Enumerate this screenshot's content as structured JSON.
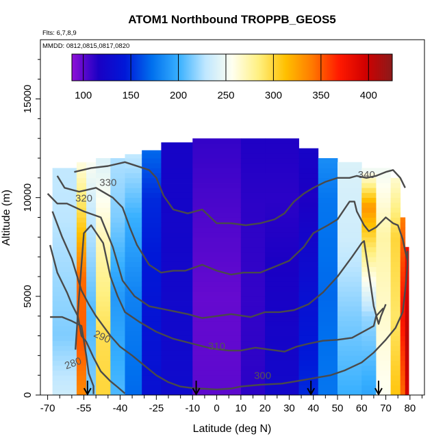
{
  "chart_data": {
    "type": "heatmap",
    "title": "ATOM1 Northbound TROPPB_GEOS5",
    "annotations": {
      "flights": "Flts: 6,7,8,9",
      "dates": "MMDD: 0812,0815,0817,0820"
    },
    "xlabel": "Latitude (deg N)",
    "ylabel": "Altitude (m)",
    "x_ticks": [
      -70,
      -55,
      -40,
      -25,
      -10,
      0,
      10,
      20,
      30,
      40,
      50,
      60,
      70,
      80
    ],
    "y_ticks": [
      0,
      5000,
      10000,
      15000
    ],
    "xlim": [
      -73,
      86
    ],
    "ylim": [
      0,
      18000
    ],
    "colorbar": {
      "ticks": [
        100,
        150,
        200,
        250,
        300,
        350,
        400
      ],
      "range": [
        88,
        425
      ],
      "stops": [
        "#8f0fd6",
        "#1a00c4",
        "#0018d8",
        "#0070ee",
        "#38b0ff",
        "#bfe7ff",
        "#fffff0",
        "#fff080",
        "#ffc000",
        "#ff7a00",
        "#ff1a00",
        "#d00000",
        "#8b1a1a"
      ]
    },
    "field": [
      {
        "lat_range": [
          -68,
          -58
        ],
        "alt_top": 11500,
        "profile": [
          [
            0,
            235
          ],
          [
            3000,
            215
          ],
          [
            9000,
            228
          ],
          [
            11500,
            230
          ]
        ]
      },
      {
        "lat_range": [
          -58,
          -54
        ],
        "alt_top": 11800,
        "profile": [
          [
            0,
            335
          ],
          [
            2500,
            350
          ],
          [
            6000,
            345
          ],
          [
            9000,
            300
          ],
          [
            11800,
            260
          ]
        ]
      },
      {
        "lat_range": [
          -54,
          -50
        ],
        "alt_top": 11800,
        "profile": [
          [
            0,
            215
          ],
          [
            4000,
            205
          ],
          [
            9000,
            230
          ],
          [
            11800,
            255
          ]
        ]
      },
      {
        "lat_range": [
          -50,
          -44
        ],
        "alt_top": 12000,
        "profile": [
          [
            0,
            300
          ],
          [
            3000,
            295
          ],
          [
            8000,
            270
          ],
          [
            12000,
            240
          ]
        ]
      },
      {
        "lat_range": [
          -44,
          -38
        ],
        "alt_top": 12000,
        "profile": [
          [
            0,
            205
          ],
          [
            5000,
            190
          ],
          [
            9000,
            215
          ],
          [
            12000,
            225
          ]
        ]
      },
      {
        "lat_range": [
          -38,
          -31
        ],
        "alt_top": 12200,
        "profile": [
          [
            0,
            170
          ],
          [
            5000,
            180
          ],
          [
            9000,
            200
          ],
          [
            12200,
            230
          ]
        ]
      },
      {
        "lat_range": [
          -31,
          -23
        ],
        "alt_top": 12400,
        "profile": [
          [
            0,
            135
          ],
          [
            5000,
            140
          ],
          [
            10000,
            150
          ],
          [
            12400,
            170
          ]
        ]
      },
      {
        "lat_range": [
          -23,
          -10
        ],
        "alt_top": 12800,
        "profile": [
          [
            0,
            128
          ],
          [
            5000,
            125
          ],
          [
            10000,
            122
          ],
          [
            12800,
            120
          ]
        ]
      },
      {
        "lat_range": [
          -10,
          10
        ],
        "alt_top": 13000,
        "profile": [
          [
            0,
            100
          ],
          [
            5000,
            98
          ],
          [
            10000,
            105
          ],
          [
            13000,
            110
          ]
        ]
      },
      {
        "lat_range": [
          10,
          20
        ],
        "alt_top": 13000,
        "profile": [
          [
            0,
            112
          ],
          [
            5000,
            110
          ],
          [
            10000,
            112
          ],
          [
            13000,
            115
          ]
        ]
      },
      {
        "lat_range": [
          20,
          34
        ],
        "alt_top": 13000,
        "profile": [
          [
            0,
            125
          ],
          [
            5000,
            118
          ],
          [
            10000,
            112
          ],
          [
            13000,
            115
          ]
        ]
      },
      {
        "lat_range": [
          34,
          42
        ],
        "alt_top": 12500,
        "profile": [
          [
            0,
            150
          ],
          [
            5000,
            135
          ],
          [
            10000,
            115
          ],
          [
            12500,
            120
          ]
        ]
      },
      {
        "lat_range": [
          42,
          50
        ],
        "alt_top": 12000,
        "profile": [
          [
            0,
            175
          ],
          [
            5000,
            170
          ],
          [
            10000,
            175
          ],
          [
            12000,
            185
          ]
        ]
      },
      {
        "lat_range": [
          50,
          60
        ],
        "alt_top": 11800,
        "profile": [
          [
            0,
            200
          ],
          [
            4000,
            215
          ],
          [
            8000,
            235
          ],
          [
            11800,
            240
          ]
        ]
      },
      {
        "lat_range": [
          60,
          66
        ],
        "alt_top": 11500,
        "profile": [
          [
            0,
            195
          ],
          [
            4000,
            220
          ],
          [
            9500,
            330
          ],
          [
            11500,
            245
          ]
        ]
      },
      {
        "lat_range": [
          66,
          72
        ],
        "alt_top": 11500,
        "profile": [
          [
            0,
            255
          ],
          [
            4000,
            265
          ],
          [
            8000,
            275
          ],
          [
            11500,
            250
          ]
        ]
      },
      {
        "lat_range": [
          72,
          76
        ],
        "alt_top": 11000,
        "profile": [
          [
            0,
            310
          ],
          [
            4000,
            290
          ],
          [
            8000,
            300
          ],
          [
            11000,
            265
          ]
        ]
      },
      {
        "lat_range": [
          76,
          78
        ],
        "alt_top": 9000,
        "profile": [
          [
            0,
            345
          ],
          [
            4000,
            375
          ],
          [
            9000,
            340
          ]
        ]
      },
      {
        "lat_range": [
          78,
          79.5
        ],
        "alt_top": 7500,
        "profile": [
          [
            0,
            395
          ],
          [
            3000,
            405
          ],
          [
            7500,
            380
          ]
        ]
      }
    ],
    "contours": [
      {
        "level": "280",
        "labeled": true,
        "points": [
          [
            -69,
            3950
          ],
          [
            -64,
            3950
          ],
          [
            -60,
            3750
          ],
          [
            -56,
            3500
          ],
          [
            -54,
            2000
          ],
          [
            -53,
            1100
          ],
          [
            -51,
            450
          ],
          [
            -51,
            50
          ]
        ]
      },
      {
        "level": "290",
        "labeled": true,
        "points": [
          [
            -69,
            7600
          ],
          [
            -66,
            6200
          ],
          [
            -62,
            5200
          ],
          [
            -60,
            4600
          ],
          [
            -57.5,
            4000
          ],
          [
            -56,
            3000
          ],
          [
            -54,
            2700
          ],
          [
            -51,
            1900
          ],
          [
            -48,
            1200
          ],
          [
            -44,
            700
          ],
          [
            -41,
            400
          ],
          [
            -38,
            80
          ]
        ]
      },
      {
        "level": "300",
        "labeled": true,
        "points": [
          [
            -68,
            9300
          ],
          [
            -64,
            8000
          ],
          [
            -60,
            6900
          ],
          [
            -56,
            5300
          ],
          [
            -53,
            4600
          ],
          [
            -50,
            4000
          ],
          [
            -47,
            3500
          ],
          [
            -44,
            3000
          ],
          [
            -40,
            2450
          ],
          [
            -35,
            2000
          ],
          [
            -30,
            1500
          ],
          [
            -25,
            1000
          ],
          [
            -20,
            650
          ],
          [
            -15,
            430
          ],
          [
            -10,
            350
          ],
          [
            -4,
            310
          ],
          [
            0,
            280
          ],
          [
            6,
            330
          ],
          [
            10,
            430
          ],
          [
            18,
            520
          ],
          [
            27,
            580
          ],
          [
            33,
            700
          ],
          [
            40,
            850
          ],
          [
            47,
            1000
          ],
          [
            53,
            1250
          ],
          [
            60,
            1650
          ],
          [
            65,
            2150
          ],
          [
            70,
            2800
          ],
          [
            74,
            3400
          ],
          [
            77,
            4200
          ],
          [
            78,
            5300
          ],
          [
            79,
            6600
          ],
          [
            79,
            7300
          ]
        ]
      },
      {
        "level": "310",
        "labeled": true,
        "points": [
          [
            -58.5,
            2300
          ],
          [
            -57,
            5000
          ],
          [
            -55,
            8200
          ],
          [
            -52,
            8600
          ],
          [
            -47,
            7700
          ],
          [
            -44,
            6000
          ],
          [
            -41,
            5000
          ],
          [
            -38,
            4200
          ],
          [
            -32,
            3700
          ],
          [
            -25,
            3200
          ],
          [
            -18,
            2850
          ],
          [
            -10,
            2600
          ],
          [
            -2,
            2350
          ],
          [
            5,
            2250
          ],
          [
            10,
            2250
          ],
          [
            16,
            2400
          ],
          [
            22,
            2300
          ],
          [
            28,
            2200
          ],
          [
            33,
            2450
          ],
          [
            38,
            2600
          ],
          [
            44,
            2750
          ],
          [
            50,
            2800
          ],
          [
            56,
            2900
          ],
          [
            62,
            3300
          ],
          [
            65,
            3500
          ],
          [
            66,
            4000
          ],
          [
            69,
            4400
          ]
        ]
      },
      {
        "level": "320",
        "labeled": true,
        "points": [
          [
            -70,
            10200
          ],
          [
            -66,
            9700
          ],
          [
            -62,
            9700
          ],
          [
            -55,
            9300
          ],
          [
            -48,
            9000
          ],
          [
            -43,
            7500
          ],
          [
            -39,
            5800
          ],
          [
            -34,
            5000
          ],
          [
            -28,
            4500
          ],
          [
            -20,
            4300
          ],
          [
            -12,
            4100
          ],
          [
            -6,
            3900
          ],
          [
            0,
            4000
          ],
          [
            6,
            4100
          ],
          [
            14,
            3950
          ],
          [
            20,
            4200
          ],
          [
            26,
            4200
          ],
          [
            32,
            4300
          ],
          [
            38,
            4600
          ],
          [
            44,
            5200
          ],
          [
            50,
            6000
          ],
          [
            56,
            7000
          ],
          [
            60,
            7700
          ],
          [
            61,
            7800
          ],
          [
            63,
            6200
          ],
          [
            65,
            4500
          ],
          [
            67,
            3600
          ],
          [
            68,
            4000
          ],
          [
            70,
            4600
          ]
        ]
      },
      {
        "level": "330",
        "labeled": true,
        "points": [
          [
            -66,
            11100
          ],
          [
            -63,
            10500
          ],
          [
            -57,
            10300
          ],
          [
            -50,
            10500
          ],
          [
            -43,
            10000
          ],
          [
            -39,
            9500
          ],
          [
            -36,
            8500
          ],
          [
            -33,
            7600
          ],
          [
            -28,
            6600
          ],
          [
            -23,
            6200
          ],
          [
            -18,
            6300
          ],
          [
            -13,
            6300
          ],
          [
            -6,
            6600
          ],
          [
            0,
            6300
          ],
          [
            6,
            6100
          ],
          [
            11,
            6200
          ],
          [
            18,
            6200
          ],
          [
            24,
            6500
          ],
          [
            30,
            6800
          ],
          [
            36,
            7500
          ],
          [
            40,
            8200
          ],
          [
            46,
            8600
          ],
          [
            50,
            8900
          ],
          [
            55,
            9800
          ],
          [
            57,
            9800
          ],
          [
            58,
            9300
          ],
          [
            61,
            8600
          ],
          [
            63,
            8300
          ],
          [
            66,
            8500
          ],
          [
            70,
            9000
          ],
          [
            73,
            8700
          ],
          [
            75,
            8600
          ],
          [
            77,
            7900
          ],
          [
            78,
            7300
          ],
          [
            79,
            6800
          ]
        ]
      },
      {
        "level": "340",
        "labeled": true,
        "points": [
          [
            -59,
            11300
          ],
          [
            -52,
            11500
          ],
          [
            -45,
            11600
          ],
          [
            -38,
            11800
          ],
          [
            -28,
            11400
          ],
          [
            -25,
            11000
          ],
          [
            -22,
            10100
          ],
          [
            -18,
            9400
          ],
          [
            -12,
            9200
          ],
          [
            -6,
            9400
          ],
          [
            0,
            8700
          ],
          [
            6,
            8700
          ],
          [
            12,
            8600
          ],
          [
            18,
            8700
          ],
          [
            24,
            8900
          ],
          [
            28,
            9200
          ],
          [
            32,
            9800
          ],
          [
            36,
            10200
          ],
          [
            40,
            10500
          ],
          [
            45,
            10800
          ],
          [
            50,
            11000
          ],
          [
            55,
            11000
          ],
          [
            58,
            11100
          ],
          [
            62,
            11000
          ],
          [
            66,
            11100
          ],
          [
            70,
            11300
          ],
          [
            73,
            11400
          ],
          [
            76,
            11000
          ],
          [
            78,
            10500
          ]
        ]
      }
    ],
    "flight_markers": [
      -53.5,
      -8.5,
      39,
      67
    ],
    "grid": false,
    "legend": "top (colorbar)"
  }
}
